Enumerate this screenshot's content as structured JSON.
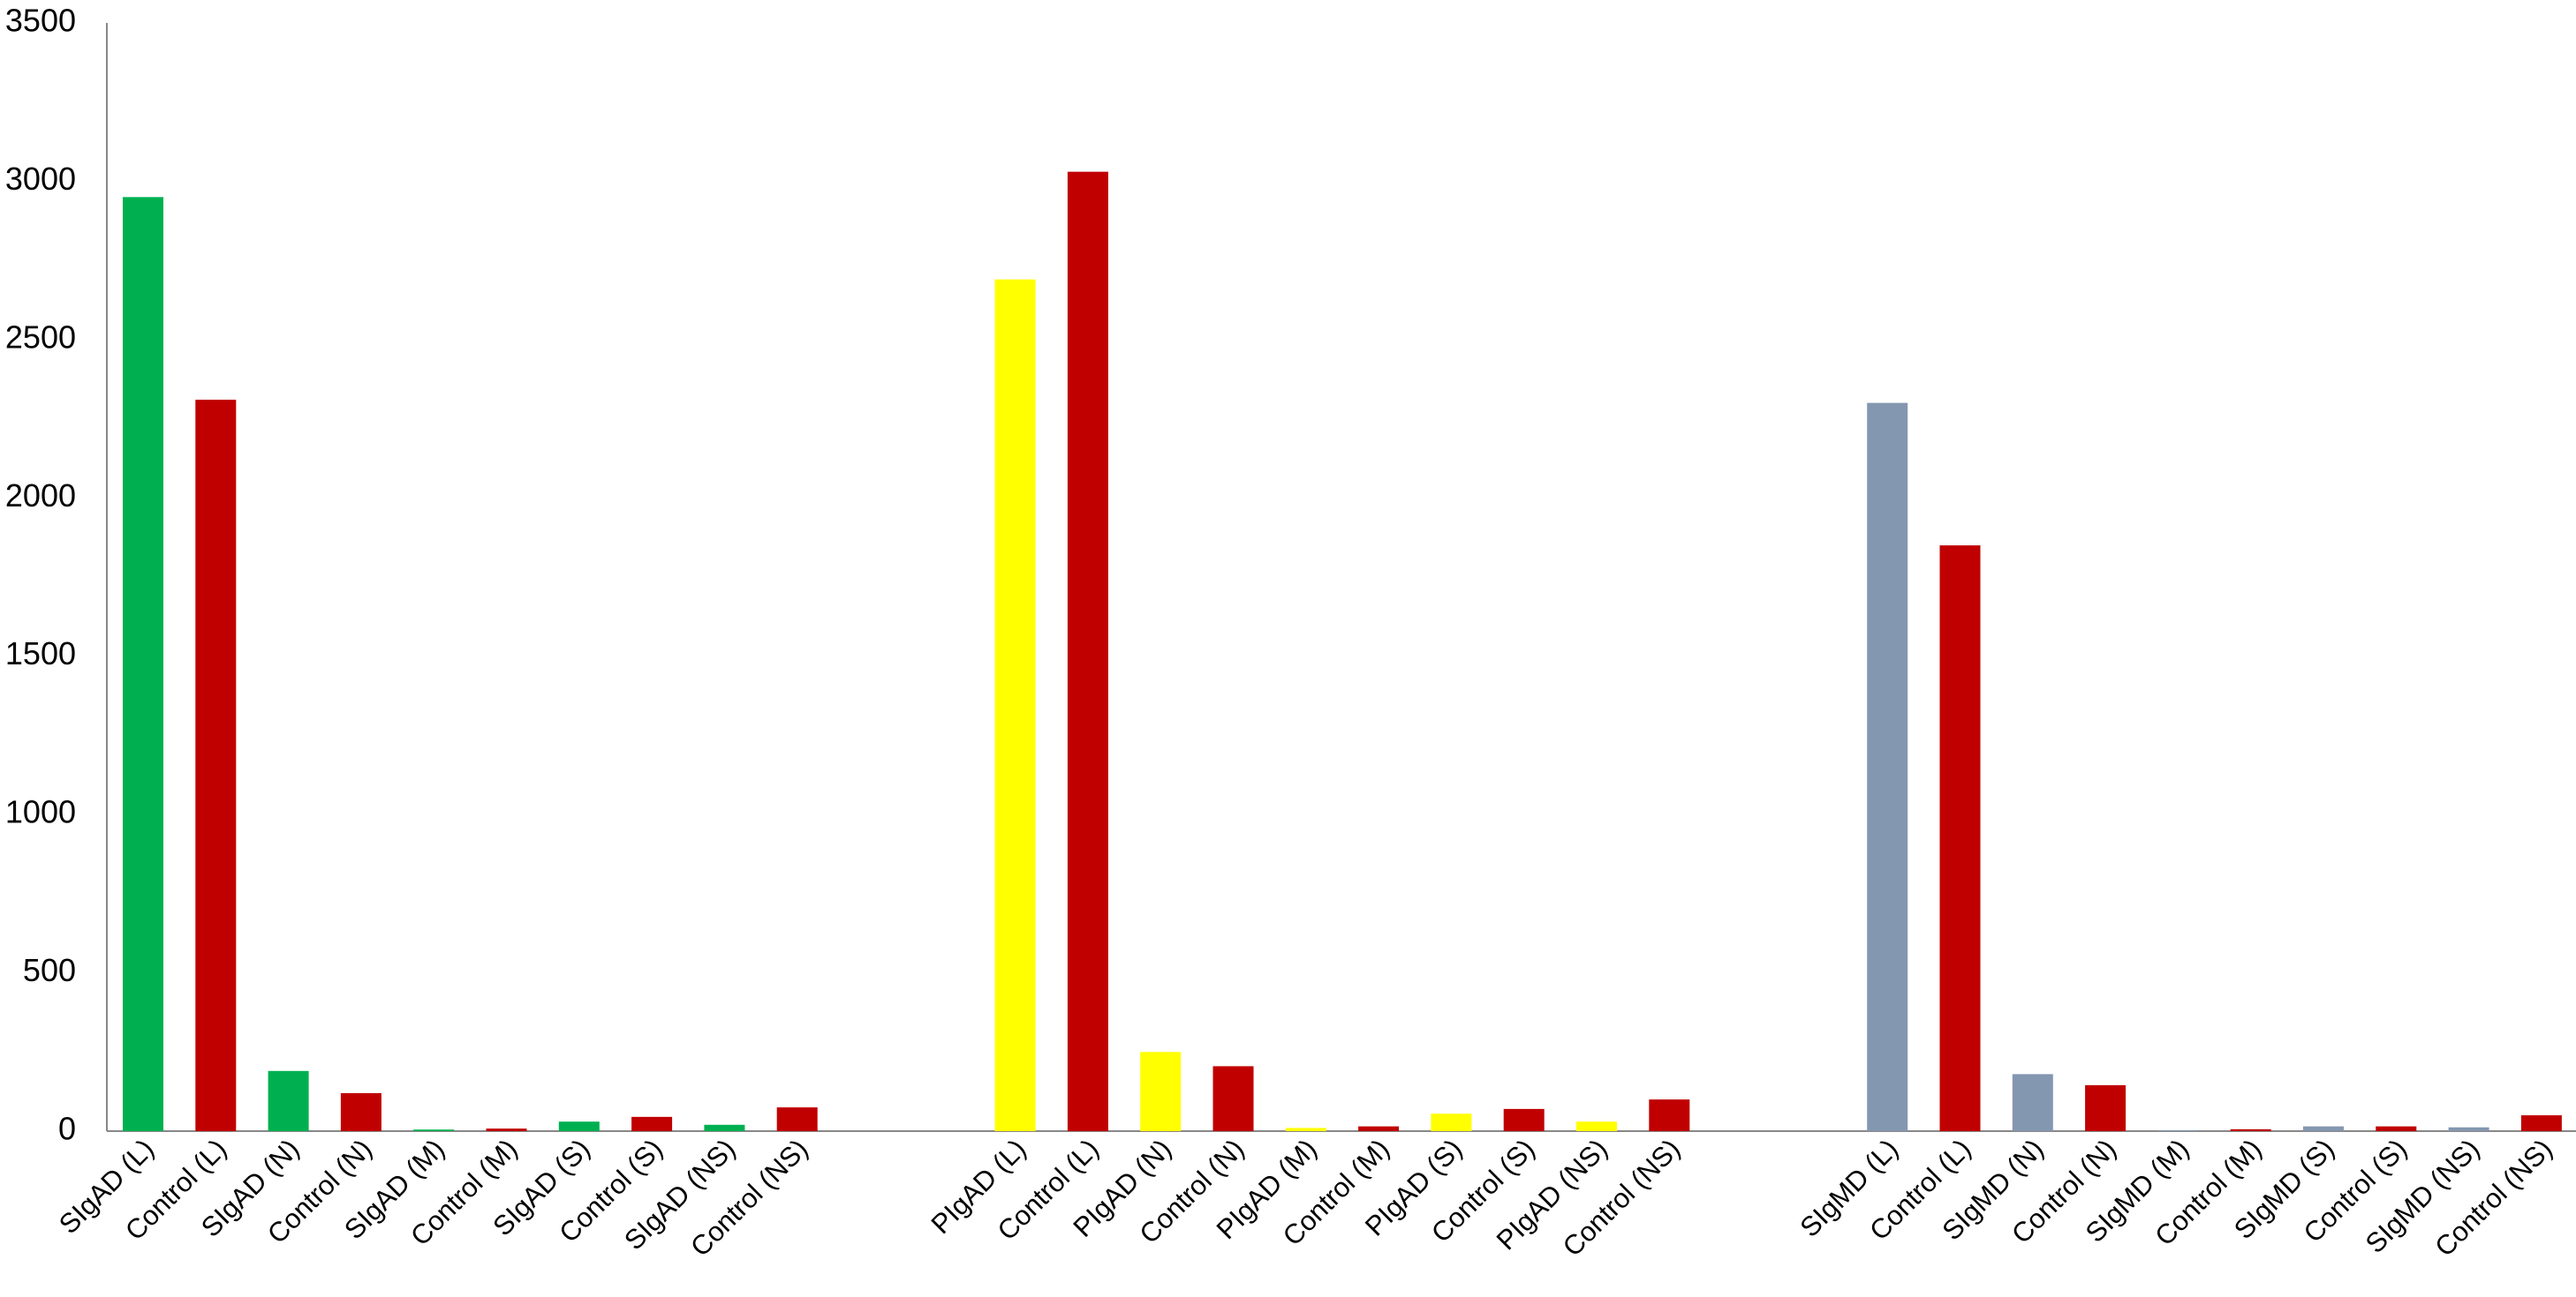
{
  "chart_data": {
    "type": "bar",
    "categories": [
      "SIgAD (L)",
      "Control (L)",
      "SIgAD (N)",
      "Control (N)",
      "SIgAD (M)",
      "Control (M)",
      "SIgAD (S)",
      "Control (S)",
      "SIgAD (NS)",
      "Control (NS)",
      null,
      null,
      "PIgAD (L)",
      "Control (L)",
      "PIgAD (N)",
      "Control (N)",
      "PIgAD (M)",
      "Control (M)",
      "PIgAD (S)",
      "Control (S)",
      "PIgAD (NS)",
      "Control (NS)",
      null,
      null,
      "SIgMD (L)",
      "Control (L)",
      "SIgMD (N)",
      "Control (N)",
      "SIgMD (M)",
      "Control (M)",
      "SIgMD (S)",
      "Control (S)",
      "SIgMD (NS)",
      "Control (NS)"
    ],
    "values": [
      2950,
      2310,
      190,
      120,
      5,
      8,
      30,
      45,
      20,
      75,
      null,
      null,
      2690,
      3030,
      250,
      205,
      10,
      15,
      55,
      70,
      30,
      100,
      null,
      null,
      2300,
      1850,
      180,
      145,
      3,
      6,
      15,
      15,
      12,
      50
    ],
    "colors": [
      "#00b050",
      "#c00000",
      "#00b050",
      "#c00000",
      "#00b050",
      "#c00000",
      "#00b050",
      "#c00000",
      "#00b050",
      "#c00000",
      null,
      null,
      "#ffff00",
      "#c00000",
      "#ffff00",
      "#c00000",
      "#ffff00",
      "#c00000",
      "#ffff00",
      "#c00000",
      "#ffff00",
      "#c00000",
      null,
      null,
      "#8497b0",
      "#c00000",
      "#8497b0",
      "#c00000",
      "#8497b0",
      "#c00000",
      "#8497b0",
      "#c00000",
      "#8497b0",
      "#c00000"
    ],
    "ylim": [
      0,
      3500
    ],
    "yticks": [
      0,
      500,
      1000,
      1500,
      2000,
      2500,
      3000,
      3500
    ],
    "grid": false
  }
}
